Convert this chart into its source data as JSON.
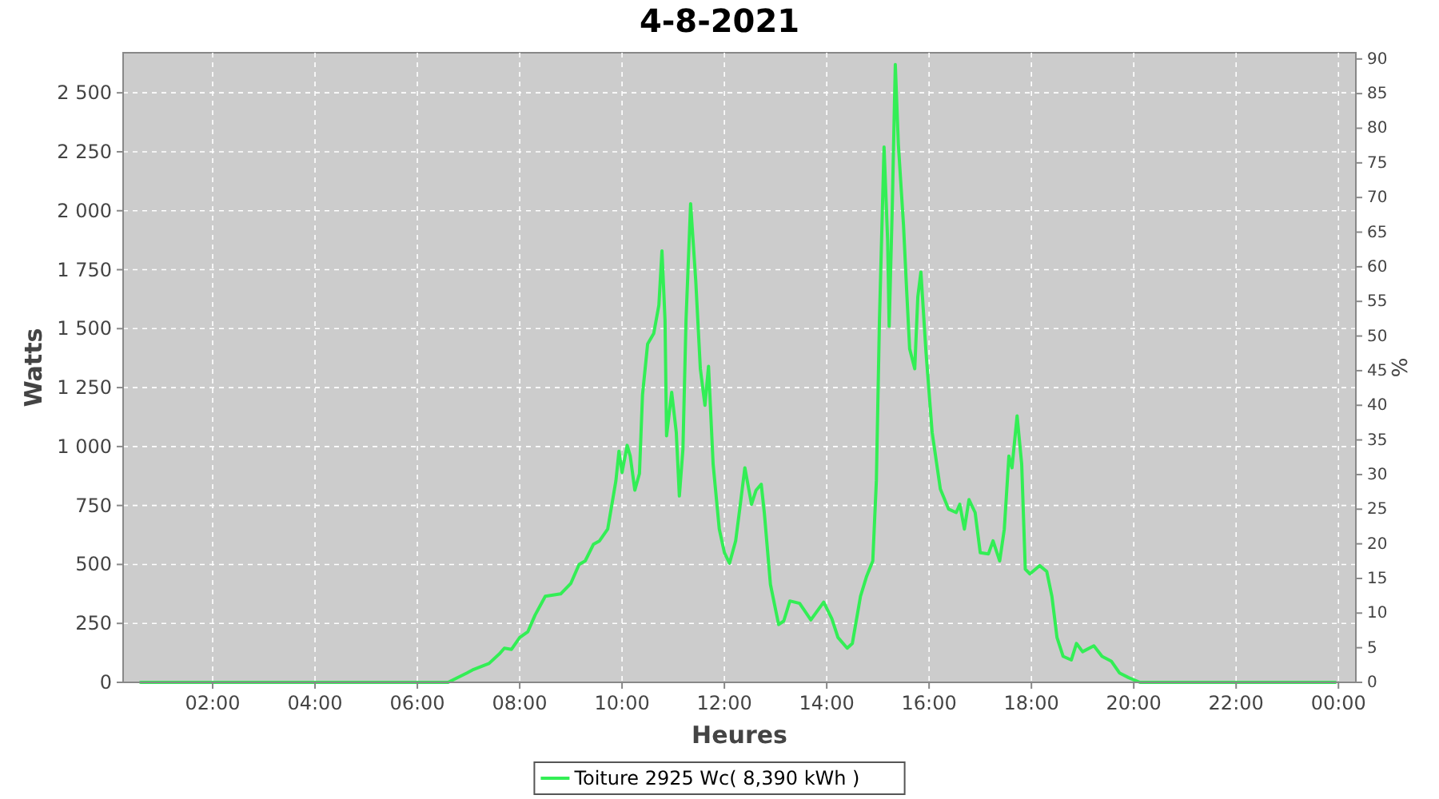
{
  "chart_data": {
    "type": "line",
    "title": "4-8-2021",
    "xlabel": "Heures",
    "ylabel": "Watts",
    "y2label": "%",
    "x": [
      0.59,
      6.6,
      6.97,
      7.1,
      7.4,
      7.6,
      7.7,
      7.84,
      8.0,
      8.16,
      8.3,
      8.5,
      8.8,
      9.0,
      9.16,
      9.28,
      9.44,
      9.56,
      9.72,
      9.88,
      9.94,
      10.0,
      10.1,
      10.16,
      10.25,
      10.34,
      10.4,
      10.5,
      10.62,
      10.72,
      10.78,
      10.84,
      10.87,
      10.97,
      11.06,
      11.12,
      11.19,
      11.25,
      11.34,
      11.44,
      11.53,
      11.62,
      11.69,
      11.78,
      11.9,
      12.0,
      12.1,
      12.22,
      12.3,
      12.4,
      12.53,
      12.62,
      12.72,
      12.78,
      12.9,
      13.06,
      13.16,
      13.28,
      13.47,
      13.69,
      13.94,
      14.1,
      14.22,
      14.4,
      14.5,
      14.66,
      14.78,
      14.9,
      14.97,
      15.03,
      15.12,
      15.19,
      15.22,
      15.28,
      15.34,
      15.4,
      15.5,
      15.56,
      15.62,
      15.72,
      15.78,
      15.84,
      15.94,
      16.06,
      16.22,
      16.38,
      16.53,
      16.6,
      16.69,
      16.78,
      16.9,
      17.0,
      17.16,
      17.25,
      17.38,
      17.47,
      17.56,
      17.62,
      17.72,
      17.81,
      17.88,
      17.97,
      18.16,
      18.3,
      18.4,
      18.5,
      18.62,
      18.78,
      18.88,
      19.0,
      19.22,
      19.38,
      19.56,
      19.72,
      19.9,
      20.12,
      23.94
    ],
    "series": [
      {
        "name": "Toiture 2925 Wc( 8,390 kWh )",
        "color": "#33ee55",
        "values": [
          0,
          0,
          40,
          55,
          80,
          120,
          145,
          140,
          190,
          215,
          285,
          365,
          375,
          420,
          500,
          515,
          585,
          600,
          650,
          855,
          980,
          890,
          1005,
          960,
          815,
          885,
          1220,
          1435,
          1480,
          1600,
          1830,
          1535,
          1045,
          1230,
          1060,
          790,
          990,
          1535,
          2030,
          1705,
          1330,
          1175,
          1340,
          925,
          650,
          550,
          505,
          600,
          735,
          910,
          755,
          815,
          840,
          720,
          415,
          245,
          260,
          345,
          335,
          265,
          340,
          270,
          190,
          145,
          165,
          365,
          450,
          515,
          855,
          1535,
          2270,
          1875,
          1510,
          2010,
          2620,
          2280,
          1940,
          1670,
          1415,
          1330,
          1635,
          1740,
          1400,
          1060,
          820,
          735,
          720,
          755,
          650,
          775,
          720,
          550,
          545,
          600,
          515,
          650,
          960,
          910,
          1130,
          925,
          480,
          460,
          495,
          470,
          365,
          190,
          110,
          95,
          165,
          130,
          155,
          110,
          90,
          40,
          20,
          0,
          0
        ]
      }
    ],
    "xlim": [
      0.25,
      24.34
    ],
    "xticks": [
      {
        "value": 2,
        "label": "02:00"
      },
      {
        "value": 4,
        "label": "04:00"
      },
      {
        "value": 6,
        "label": "06:00"
      },
      {
        "value": 8,
        "label": "08:00"
      },
      {
        "value": 10,
        "label": "10:00"
      },
      {
        "value": 12,
        "label": "12:00"
      },
      {
        "value": 14,
        "label": "14:00"
      },
      {
        "value": 16,
        "label": "16:00"
      },
      {
        "value": 18,
        "label": "18:00"
      },
      {
        "value": 20,
        "label": "20:00"
      },
      {
        "value": 22,
        "label": "22:00"
      },
      {
        "value": 24,
        "label": "00:00"
      }
    ],
    "ylim": [
      0,
      2670
    ],
    "yticks": [
      0,
      250,
      500,
      750,
      {
        "value": 1000,
        "label": "1 000"
      },
      {
        "value": 1250,
        "label": "1 250"
      },
      {
        "value": 1500,
        "label": "1 500"
      },
      {
        "value": 1750,
        "label": "1 750"
      },
      {
        "value": 2000,
        "label": "2 000"
      },
      {
        "value": 2250,
        "label": "2 250"
      },
      {
        "value": 2500,
        "label": "2 500"
      }
    ],
    "y2lim": [
      0,
      90.9
    ],
    "y2ticks": [
      0,
      5,
      10,
      15,
      20,
      25,
      30,
      35,
      40,
      45,
      50,
      55,
      60,
      65,
      70,
      75,
      80,
      85,
      90
    ],
    "grid": true,
    "legend": "bottom",
    "marker": "none",
    "line_style": "solid"
  }
}
